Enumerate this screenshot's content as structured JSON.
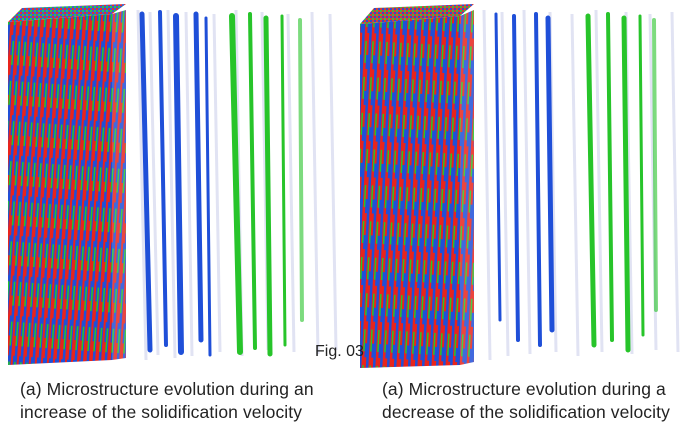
{
  "figure_label": "Fig. 03",
  "panels": [
    {
      "caption_line1": "(a) Microstructure evolution during an",
      "caption_line2": "increase of the solidification velocity"
    },
    {
      "caption_line1": "(a) Microstructure evolution during a",
      "caption_line2": "decrease of the solidification velocity"
    }
  ],
  "colors": {
    "phase_red": "#e8241c",
    "phase_blue": "#1f4fd8",
    "phase_green": "#27c42a",
    "phase_faint": "#c8cbe6"
  }
}
